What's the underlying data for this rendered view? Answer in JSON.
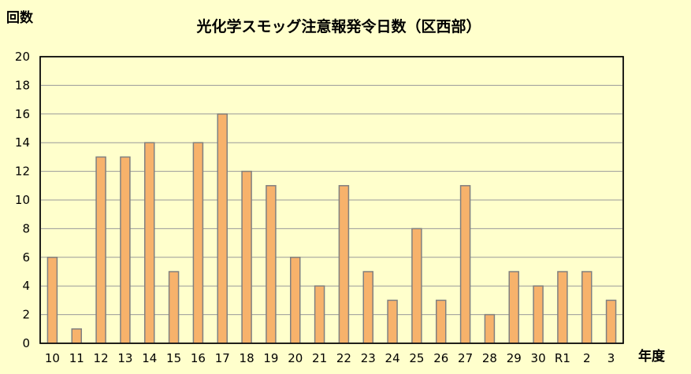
{
  "chart_data": {
    "type": "bar",
    "title": "光化学スモッグ注意報発令日数（区西部）",
    "ylabel": "回数",
    "xlabel": "年度",
    "categories": [
      "10",
      "11",
      "12",
      "13",
      "14",
      "15",
      "16",
      "17",
      "18",
      "19",
      "20",
      "21",
      "22",
      "23",
      "24",
      "25",
      "26",
      "27",
      "28",
      "29",
      "30",
      "R1",
      "2",
      "3"
    ],
    "values": [
      6,
      1,
      13,
      13,
      14,
      5,
      14,
      16,
      12,
      11,
      6,
      4,
      11,
      5,
      3,
      8,
      3,
      11,
      2,
      5,
      4,
      5,
      5,
      3
    ],
    "ylim": [
      0,
      20
    ],
    "yticks": [
      "0",
      "2",
      "4",
      "6",
      "8",
      "10",
      "12",
      "14",
      "16",
      "18",
      "20"
    ],
    "grid": true,
    "colors": {
      "bar": "#f7b26b",
      "bar_border": "#808080",
      "background": "#ffffcc"
    }
  }
}
